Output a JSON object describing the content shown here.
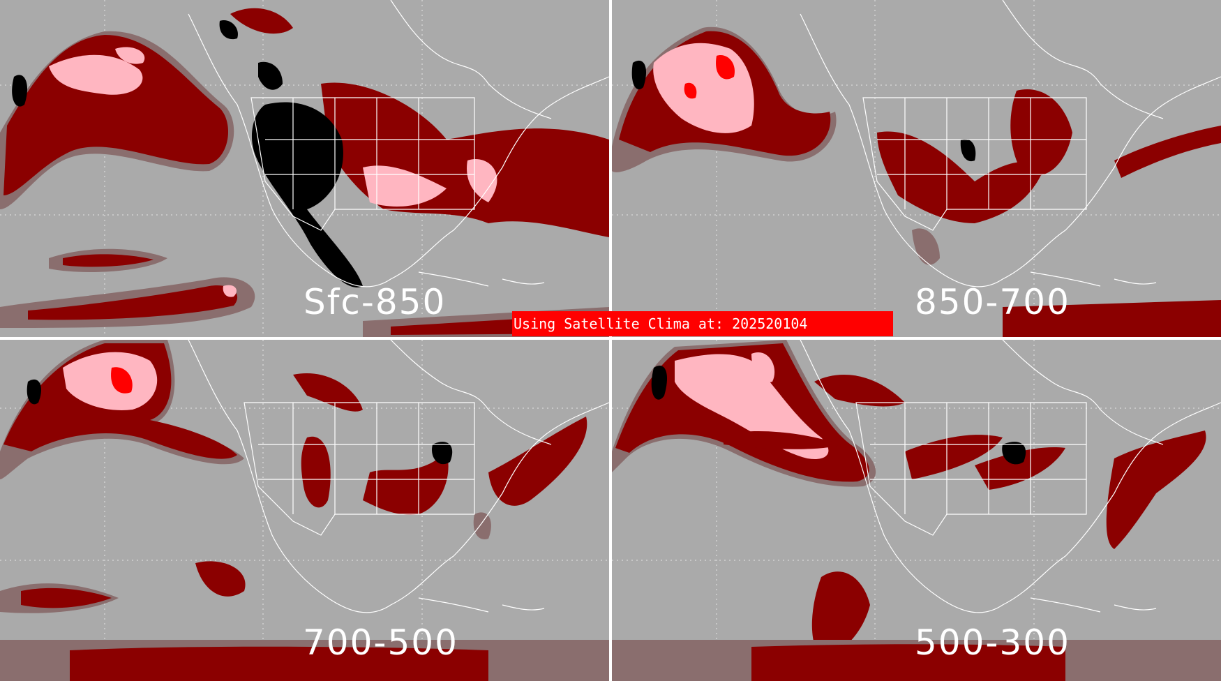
{
  "panels": [
    {
      "id": "sfc-850",
      "label": "Sfc-850"
    },
    {
      "id": "850-700",
      "label": "850-700"
    },
    {
      "id": "700-500",
      "label": "700-500"
    },
    {
      "id": "500-300",
      "label": "500-300"
    }
  ],
  "banner": {
    "text": "Using Satellite Clima at: 202520104"
  },
  "colors": {
    "background": "#aaaaaa",
    "low": "#8a6e6e",
    "medium": "#8b0000",
    "high": "#ffb6c1",
    "max": "#ff0000",
    "missing": "#000000",
    "outline": "#ffffff"
  }
}
